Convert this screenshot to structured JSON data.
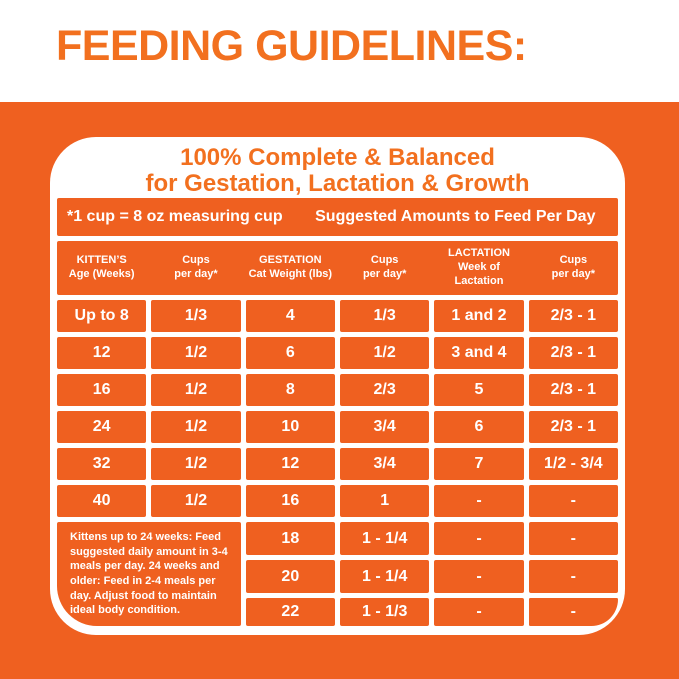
{
  "title": "FEEDING GUIDELINES:",
  "colors": {
    "accent_orange": "#F2701F",
    "panel_orange": "#EF6020",
    "text_on_orange": "#FFFFFF"
  },
  "card": {
    "heading_line1": "100% Complete & Balanced",
    "heading_line2": "for Gestation, Lactation & Growth",
    "cup_note": "*1 cup = 8 oz measuring cup",
    "amounts_note": "Suggested Amounts to Feed Per Day",
    "columns": [
      [
        "KITTEN’S",
        "Age (Weeks)"
      ],
      [
        "Cups",
        "per day*"
      ],
      [
        "GESTATION",
        "Cat Weight (lbs)"
      ],
      [
        "Cups",
        "per day*"
      ],
      [
        "LACTATION",
        "Week of",
        "Lactation"
      ],
      [
        "Cups",
        "per day*"
      ]
    ],
    "rows": [
      [
        "Up to 8",
        "1/3",
        "4",
        "1/3",
        "1 and 2",
        "2/3 - 1"
      ],
      [
        "12",
        "1/2",
        "6",
        "1/2",
        "3 and 4",
        "2/3 - 1"
      ],
      [
        "16",
        "1/2",
        "8",
        "2/3",
        "5",
        "2/3 - 1"
      ],
      [
        "24",
        "1/2",
        "10",
        "3/4",
        "6",
        "2/3 - 1"
      ],
      [
        "32",
        "1/2",
        "12",
        "3/4",
        "7",
        "1/2 - 3/4"
      ],
      [
        "40",
        "1/2",
        "16",
        "1",
        "-",
        "-"
      ]
    ],
    "footer_note": "Kittens up to 24 weeks: Feed suggested daily amount in 3-4 meals per day. 24 weeks and older: Feed in 2-4 meals per day. Adjust food to maintain ideal body condition.",
    "footer_rows": [
      [
        "18",
        "1 - 1/4",
        "-",
        "-"
      ],
      [
        "20",
        "1 - 1/4",
        "-",
        "-"
      ],
      [
        "22",
        "1 - 1/3",
        "-",
        "-"
      ]
    ]
  }
}
